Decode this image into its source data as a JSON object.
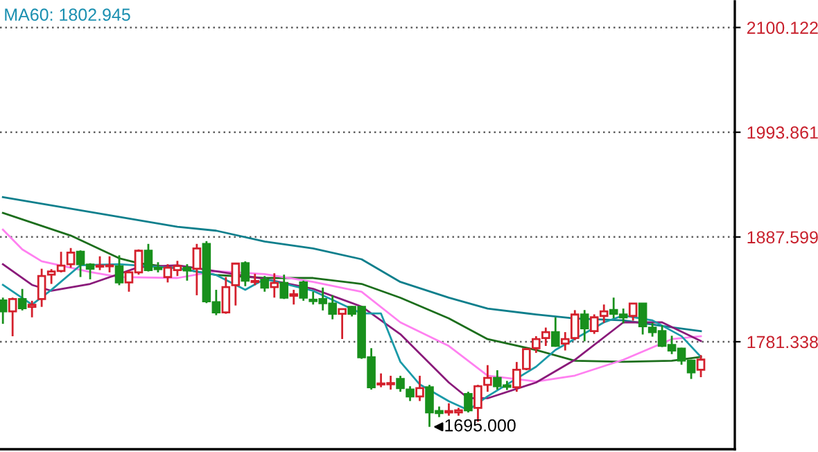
{
  "chart_data": {
    "type": "candlestick",
    "categories": [
      null,
      null,
      null,
      null,
      null,
      null,
      null,
      null,
      null,
      null,
      null,
      null,
      null,
      null,
      null,
      null,
      null,
      null,
      null,
      null,
      null,
      null,
      null,
      null,
      null,
      null,
      null,
      null,
      null,
      null,
      null,
      null,
      null,
      null,
      null,
      null,
      null,
      null,
      null,
      null,
      null,
      null,
      null,
      null,
      null,
      null,
      null,
      null,
      null,
      null,
      null,
      null,
      null,
      null,
      null,
      null,
      null,
      null,
      null,
      null,
      null,
      null,
      null,
      null,
      null,
      null,
      null,
      null,
      null,
      null,
      null,
      null,
      null
    ],
    "ohlc": [
      [
        1823.3,
        1826.1,
        1799.5,
        1812.1
      ],
      [
        1812.1,
        1826.1,
        1786.9,
        1824.7
      ],
      [
        1824.7,
        1834.9,
        1813.1,
        1815.3
      ],
      [
        1816.7,
        1822.9,
        1806.1,
        1818.8
      ],
      [
        1824.7,
        1855.4,
        1816.7,
        1848.0
      ],
      [
        1849.4,
        1855.0,
        1840.0,
        1852.6
      ],
      [
        1853.1,
        1872.6,
        1851.7,
        1858.6
      ],
      [
        1860.0,
        1876.4,
        1856.4,
        1871.8
      ],
      [
        1872.6,
        1874.0,
        1847.0,
        1860.0
      ],
      [
        1859.6,
        1861.0,
        1844.7,
        1855.4
      ],
      [
        1857.5,
        1868.0,
        1854.0,
        1858.6
      ],
      [
        1857.9,
        1868.0,
        1851.7,
        1858.8
      ],
      [
        1857.8,
        1869.0,
        1838.7,
        1841.5
      ],
      [
        1841.5,
        1854.0,
        1832.1,
        1851.7
      ],
      [
        1851.7,
        1875.0,
        1849.4,
        1873.6
      ],
      [
        1873.6,
        1880.6,
        1852.6,
        1854.0
      ],
      [
        1856.4,
        1862.0,
        1851.7,
        1855.0
      ],
      [
        1847.0,
        1860.0,
        1841.5,
        1856.4
      ],
      [
        1854.0,
        1863.4,
        1848.0,
        1858.2
      ],
      [
        1856.4,
        1860.0,
        1843.3,
        1853.6
      ],
      [
        1855.4,
        1880.6,
        1828.5,
        1876.0
      ],
      [
        1880.6,
        1883.4,
        1820.5,
        1822.3
      ],
      [
        1821.5,
        1834.0,
        1808.3,
        1811.1
      ],
      [
        1811.1,
        1847.0,
        1809.7,
        1836.8
      ],
      [
        1838.7,
        1861.5,
        1818.1,
        1860.6
      ],
      [
        1861.0,
        1862.9,
        1837.7,
        1843.3
      ],
      [
        1841.9,
        1850.3,
        1838.7,
        1842.9
      ],
      [
        1844.3,
        1848.0,
        1832.1,
        1836.3
      ],
      [
        1836.8,
        1850.8,
        1826.1,
        1841.0
      ],
      [
        1841.0,
        1849.4,
        1824.7,
        1826.1
      ],
      [
        1828.0,
        1834.0,
        1819.1,
        1829.5
      ],
      [
        1841.5,
        1843.3,
        1822.9,
        1826.1
      ],
      [
        1824.0,
        1832.1,
        1819.1,
        1822.6
      ],
      [
        1824.7,
        1836.3,
        1813.1,
        1820.5
      ],
      [
        1820.1,
        1828.5,
        1804.1,
        1809.7
      ],
      [
        1809.7,
        1815.0,
        1784.1,
        1814.5
      ],
      [
        1816.7,
        1817.5,
        1807.0,
        1809.7
      ],
      [
        1816.7,
        1817.5,
        1764.0,
        1765.5
      ],
      [
        1765.5,
        1774.8,
        1732.8,
        1735.2
      ],
      [
        1738.0,
        1749.2,
        1735.2,
        1739.0
      ],
      [
        1738.2,
        1746.8,
        1732.8,
        1739.4
      ],
      [
        1743.6,
        1746.8,
        1730.6,
        1734.2
      ],
      [
        1732.8,
        1736.2,
        1721.2,
        1725.8
      ],
      [
        1725.8,
        1746.8,
        1721.2,
        1734.2
      ],
      [
        1735.2,
        1737.6,
        1695.0,
        1709.6
      ],
      [
        1711.0,
        1715.6,
        1704.9,
        1709.0
      ],
      [
        1709.6,
        1718.9,
        1706.3,
        1711.0
      ],
      [
        1709.6,
        1714.3,
        1706.3,
        1711.8
      ],
      [
        1728.2,
        1730.6,
        1709.6,
        1711.8
      ],
      [
        1714.2,
        1737.6,
        1700.3,
        1736.2
      ],
      [
        1737.6,
        1757.6,
        1730.6,
        1744.6
      ],
      [
        1744.6,
        1752.4,
        1732.8,
        1736.2
      ],
      [
        1737.1,
        1741.6,
        1732.4,
        1735.6
      ],
      [
        1735.2,
        1760.8,
        1730.6,
        1752.9
      ],
      [
        1753.8,
        1775.2,
        1752.4,
        1773.9
      ],
      [
        1774.8,
        1787.0,
        1770.0,
        1784.1
      ],
      [
        1785.1,
        1795.7,
        1777.1,
        1791.1
      ],
      [
        1791.1,
        1806.1,
        1776.2,
        1777.1
      ],
      [
        1779.5,
        1791.1,
        1772.5,
        1784.1
      ],
      [
        1785.1,
        1813.4,
        1782.9,
        1808.9
      ],
      [
        1808.9,
        1813.5,
        1781.8,
        1794.9
      ],
      [
        1792.1,
        1809.1,
        1789.3,
        1806.1
      ],
      [
        1807.5,
        1819.1,
        1800.5,
        1812.1
      ],
      [
        1813.5,
        1826.1,
        1805.1,
        1809.7
      ],
      [
        1808.9,
        1815.0,
        1800.0,
        1806.1
      ],
      [
        1807.5,
        1820.5,
        1802.7,
        1820.1
      ],
      [
        1820.1,
        1820.5,
        1788.7,
        1797.1
      ],
      [
        1795.7,
        1800.5,
        1786.5,
        1791.1
      ],
      [
        1792.1,
        1798.0,
        1776.0,
        1777.1
      ],
      [
        1778.1,
        1787.4,
        1768.8,
        1772.5
      ],
      [
        1774.3,
        1775.2,
        1758.0,
        1762.2
      ],
      [
        1762.2,
        1763.2,
        1743.6,
        1750.2
      ],
      [
        1752.9,
        1767.8,
        1745.4,
        1763.2
      ]
    ],
    "colors": [
      "#18901c",
      "#d4202c",
      "#18901c",
      "#d4202c",
      "#d4202c",
      "#d4202c",
      "#d4202c",
      "#d4202c",
      "#18901c",
      "#18901c",
      "#d4202c",
      "#d4202c",
      "#18901c",
      "#d4202c",
      "#d4202c",
      "#18901c",
      "#18901c",
      "#d4202c",
      "#d4202c",
      "#18901c",
      "#d4202c",
      "#18901c",
      "#18901c",
      "#d4202c",
      "#d4202c",
      "#18901c",
      "#d4202c",
      "#18901c",
      "#d4202c",
      "#18901c",
      "#d4202c",
      "#18901c",
      "#18901c",
      "#18901c",
      "#18901c",
      "#d4202c",
      "#18901c",
      "#18901c",
      "#18901c",
      "#d4202c",
      "#d4202c",
      "#18901c",
      "#18901c",
      "#d4202c",
      "#18901c",
      "#18901c",
      "#d4202c",
      "#d4202c",
      "#18901c",
      "#d4202c",
      "#d4202c",
      "#18901c",
      "#18901c",
      "#d4202c",
      "#d4202c",
      "#d4202c",
      "#d4202c",
      "#18901c",
      "#d4202c",
      "#d4202c",
      "#18901c",
      "#d4202c",
      "#d4202c",
      "#18901c",
      "#18901c",
      "#d4202c",
      "#18901c",
      "#18901c",
      "#18901c",
      "#18901c",
      "#18901c",
      "#18901c",
      "#d4202c"
    ],
    "series": [
      {
        "type": "line",
        "color": "#0e7f8c",
        "values": [
          1928,
          null,
          null,
          null,
          null,
          null,
          null,
          null,
          null,
          null,
          null,
          null,
          null,
          null,
          null,
          null,
          null,
          null,
          1898,
          null,
          null,
          null,
          1894,
          null,
          null,
          null,
          null,
          1883,
          null,
          null,
          null,
          null,
          1876,
          null,
          null,
          null,
          null,
          1865,
          null,
          null,
          null,
          1842,
          null,
          null,
          null,
          null,
          1826,
          null,
          null,
          null,
          1815,
          null,
          null,
          null,
          null,
          1809,
          null,
          null,
          null,
          1805,
          null,
          null,
          null,
          null,
          1803,
          null,
          null,
          null,
          null,
          1796,
          null,
          null,
          1792
        ]
      },
      {
        "type": "line",
        "color": "#1c6e1c",
        "values": [
          1912,
          null,
          null,
          null,
          null,
          null,
          null,
          1889,
          null,
          null,
          null,
          null,
          1866,
          null,
          1861,
          null,
          null,
          null,
          1856,
          null,
          null,
          null,
          1849,
          null,
          null,
          null,
          null,
          1846,
          null,
          null,
          null,
          null,
          1846,
          null,
          null,
          null,
          null,
          1840,
          null,
          null,
          null,
          1826,
          null,
          null,
          null,
          null,
          1805,
          null,
          null,
          null,
          1784,
          null,
          null,
          null,
          null,
          1773,
          null,
          null,
          null,
          1762,
          null,
          null,
          null,
          null,
          1761,
          null,
          null,
          null,
          null,
          1762,
          null,
          null,
          1766
        ]
      },
      {
        "type": "line",
        "color": "#ff80f0",
        "values": [
          1895,
          null,
          1875,
          null,
          1863,
          null,
          null,
          null,
          null,
          1852,
          null,
          null,
          1847,
          null,
          null,
          null,
          null,
          null,
          1846,
          null,
          null,
          null,
          1853,
          null,
          null,
          null,
          null,
          1850,
          null,
          null,
          null,
          null,
          1842,
          null,
          null,
          null,
          null,
          1832,
          null,
          null,
          null,
          1801,
          null,
          null,
          null,
          null,
          1777,
          null,
          null,
          null,
          1747,
          null,
          null,
          null,
          null,
          1741,
          null,
          null,
          null,
          1747,
          null,
          null,
          null,
          null,
          1763,
          null,
          null,
          null,
          null,
          1784,
          null,
          null,
          1787
        ]
      },
      {
        "type": "line",
        "color": "#8a1a7a",
        "values": [
          1860,
          null,
          null,
          1839,
          null,
          1833,
          null,
          null,
          null,
          1840,
          null,
          null,
          null,
          null,
          1857,
          null,
          null,
          null,
          1859,
          null,
          1856,
          null,
          null,
          null,
          null,
          null,
          null,
          1845,
          null,
          null,
          null,
          null,
          1835,
          null,
          null,
          null,
          null,
          1817,
          null,
          null,
          null,
          1789,
          null,
          null,
          null,
          null,
          1740,
          null,
          1724,
          null,
          1724,
          null,
          null,
          null,
          null,
          1740,
          null,
          null,
          null,
          1763,
          null,
          null,
          null,
          null,
          1801,
          null,
          null,
          null,
          1801,
          null,
          null,
          null,
          1782
        ]
      },
      {
        "type": "line",
        "color": "#1a9aa8",
        "values": [
          1839,
          null,
          null,
          1819,
          null,
          1834,
          null,
          null,
          1859,
          null,
          null,
          null,
          1860,
          null,
          null,
          null,
          null,
          null,
          1856,
          null,
          null,
          null,
          1849,
          null,
          null,
          1834,
          null,
          1845,
          null,
          null,
          null,
          null,
          1833,
          null,
          null,
          null,
          null,
          1810,
          null,
          1810,
          null,
          1761,
          null,
          1738,
          null,
          null,
          1721,
          null,
          1712,
          null,
          1726,
          null,
          null,
          null,
          null,
          1756,
          null,
          1773,
          null,
          null,
          null,
          null,
          1801,
          null,
          1808,
          null,
          null,
          1803,
          null,
          null,
          1787,
          null,
          1766
        ]
      }
    ],
    "ylim": [
      1672.3,
      2126.6
    ],
    "yticks": [
      2100.122,
      1993.861,
      1887.599,
      1781.338
    ],
    "grid": "y",
    "annotations": [
      "MA60: 1802.945",
      {
        "text": "1695.000",
        "y": 1695.0
      }
    ]
  }
}
